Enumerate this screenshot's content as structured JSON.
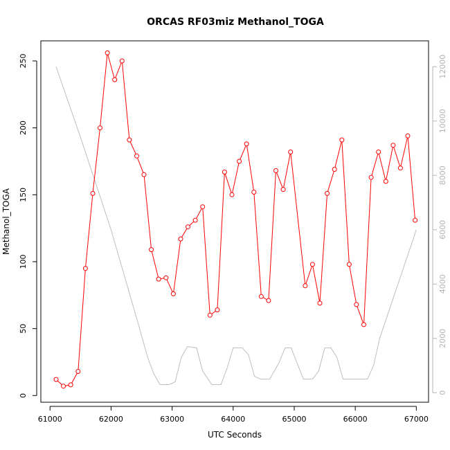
{
  "chart_data": {
    "type": "line",
    "title": "ORCAS RF03miz Methanol_TOGA",
    "xlabel": "UTC Seconds",
    "ylabel": "Methanol_TOGA",
    "xlim": [
      60850,
      67200
    ],
    "ylim": [
      -5,
      265
    ],
    "y2lim": [
      -350,
      12950
    ],
    "x_ticks": [
      61000,
      62000,
      63000,
      64000,
      65000,
      66000,
      67000
    ],
    "y_ticks": [
      0,
      50,
      100,
      150,
      200,
      250
    ],
    "y2_ticks": [
      0,
      2000,
      4000,
      6000,
      8000,
      10000,
      12000
    ],
    "colors": {
      "primary": "#ff0000",
      "secondary": "#bebebe",
      "axis": "#000000",
      "right_axis": "#b3b3b3"
    },
    "grid": false,
    "series": [
      {
        "axis": "left",
        "style": "line-markers",
        "x": [
          61100,
          61220,
          61340,
          61460,
          61580,
          61700,
          61820,
          61940,
          62060,
          62180,
          62300,
          62420,
          62540,
          62660,
          62780,
          62900,
          63020,
          63140,
          63260,
          63380,
          63500,
          63620,
          63740,
          63860,
          63980,
          64100,
          64220,
          64340,
          64460,
          64580,
          64700,
          64820,
          64940,
          65180,
          65300,
          65420,
          65540,
          65660,
          65780,
          65900,
          66020,
          66140,
          66260,
          66380,
          66500,
          66620,
          66740,
          66860,
          66980
        ],
        "y": [
          12,
          7,
          8,
          18,
          95,
          151,
          200,
          256,
          236,
          250,
          191,
          179,
          165,
          109,
          87,
          88,
          76,
          117,
          126,
          131,
          141,
          60,
          64,
          167,
          150,
          175,
          188,
          152,
          74,
          71,
          168,
          154,
          182,
          82,
          98,
          69,
          151,
          169,
          191,
          98,
          68,
          53,
          163,
          182,
          160,
          187,
          170,
          194,
          131
        ]
      },
      {
        "axis": "right",
        "style": "line",
        "x": [
          61100,
          61500,
          62000,
          62450,
          62600,
          62700,
          62800,
          62950,
          63050,
          63150,
          63250,
          63400,
          63500,
          63650,
          63800,
          63900,
          64000,
          64150,
          64250,
          64350,
          64450,
          64600,
          64750,
          64850,
          64950,
          65150,
          65300,
          65400,
          65500,
          65600,
          65700,
          65800,
          65900,
          66000,
          66200,
          66300,
          66400,
          67000
        ],
        "y": [
          12000,
          9400,
          6000,
          2500,
          1300,
          700,
          300,
          300,
          400,
          1300,
          1700,
          1650,
          800,
          300,
          300,
          900,
          1650,
          1650,
          1400,
          600,
          500,
          500,
          1100,
          1650,
          1650,
          500,
          500,
          800,
          1650,
          1650,
          1300,
          500,
          500,
          500,
          500,
          1000,
          2000,
          6000
        ]
      }
    ]
  }
}
